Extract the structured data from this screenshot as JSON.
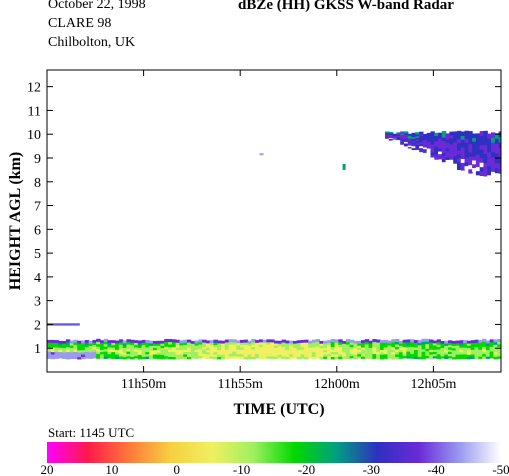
{
  "header": {
    "date": "October 22, 1998",
    "campaign": "CLARE 98",
    "location": "Chilbolton, UK",
    "title": "dBZe (HH)   GKSS  W-band Radar"
  },
  "footer": {
    "start": "Start: 1145 UTC"
  },
  "chart_data": {
    "type": "heatmap",
    "title": "dBZe (HH)   GKSS  W-band Radar",
    "xlabel": "TIME (UTC)",
    "ylabel": "HEIGHT AGL (km)",
    "x_ticks": [
      {
        "label": "11h50m",
        "minutes_after_start": 5
      },
      {
        "label": "11h55m",
        "minutes_after_start": 10
      },
      {
        "label": "12h00m",
        "minutes_after_start": 15
      },
      {
        "label": "12h05m",
        "minutes_after_start": 20
      }
    ],
    "xlim_minutes_after_start": [
      0,
      23.5
    ],
    "y_ticks": [
      1,
      2,
      3,
      4,
      5,
      6,
      7,
      8,
      9,
      10,
      11,
      12
    ],
    "ylim": [
      0,
      12.7
    ],
    "colorbar": {
      "label_values": [
        "20",
        "10",
        "0",
        "-10",
        "-20",
        "-30",
        "-40",
        "-50"
      ],
      "range": [
        20,
        -50
      ],
      "colors": [
        "#ff00ff",
        "#ff1a4a",
        "#ff7a3a",
        "#f5d040",
        "#f0f060",
        "#9ef060",
        "#00d800",
        "#00a080",
        "#3030c0",
        "#6a2ad8",
        "#9a9af0",
        "#ffffff"
      ]
    },
    "echoes": [
      {
        "name": "low-cloud-layer",
        "t_start": 0,
        "t_end": 23.5,
        "h_bottom": 0.55,
        "h_top": 1.35,
        "dbz_range": [
          -35,
          -5
        ]
      },
      {
        "name": "upper-cloud",
        "t_start": 17.5,
        "t_end": 23.5,
        "h_bottom": 7.8,
        "h_top": 10.3,
        "dbz_range": [
          -48,
          -25
        ]
      },
      {
        "name": "elevated-layer",
        "t_start": 0,
        "t_end": 1.7,
        "h_bottom": 1.95,
        "h_top": 2.05,
        "dbz_range": [
          -42,
          -38
        ]
      }
    ]
  }
}
